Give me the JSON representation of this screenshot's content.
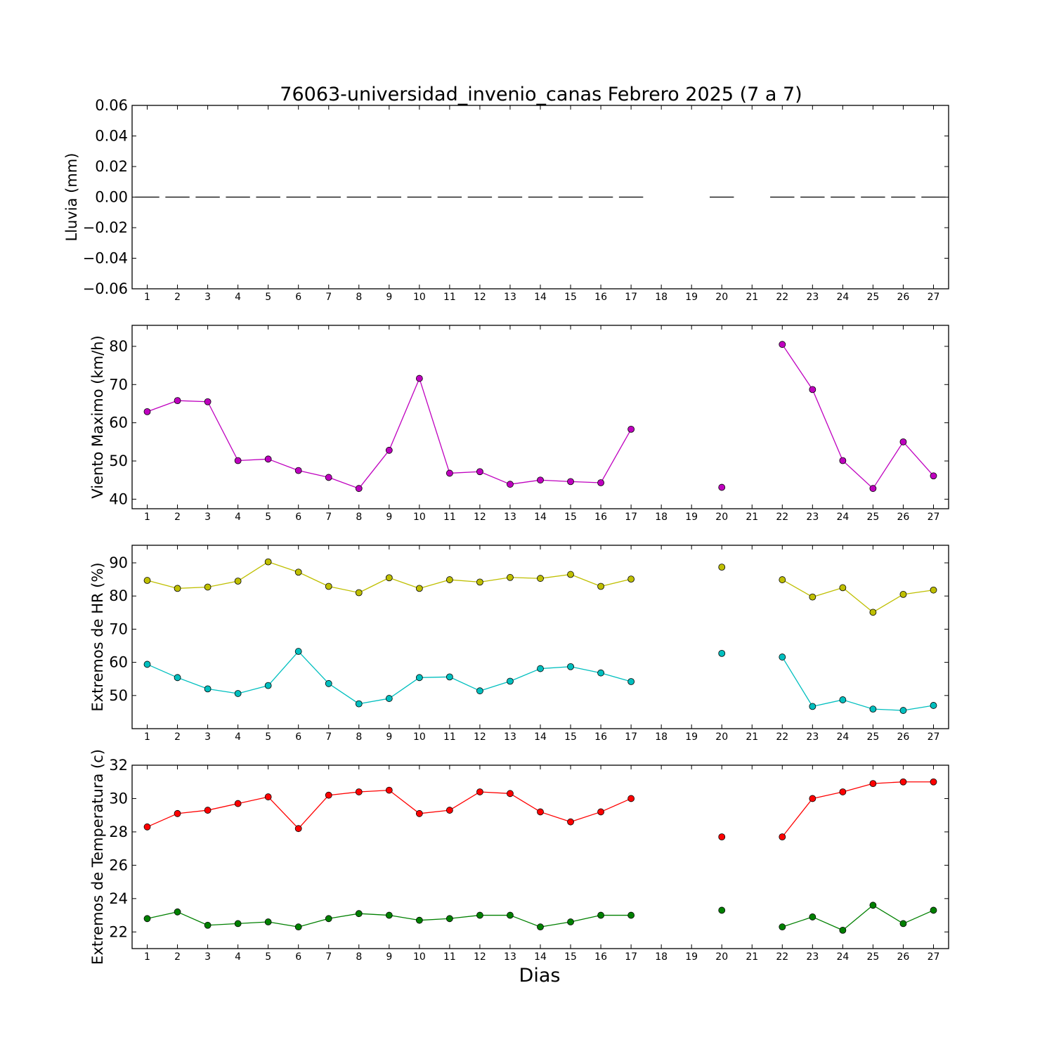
{
  "chart_data": [
    {
      "type": "bar",
      "title": "76063-universidad_invenio_canas Febrero 2025  (7 a 7)",
      "ylabel": "Lluvia (mm)",
      "xlabel": "",
      "ylim": [
        -0.06,
        0.06
      ],
      "yticks": [
        "0.06",
        "0.04",
        "0.02",
        "0.00",
        "−0.02",
        "−0.04",
        "−0.06"
      ],
      "yticks_values": [
        0.06,
        0.04,
        0.02,
        0.0,
        -0.02,
        -0.04,
        -0.06
      ],
      "categories": [
        1,
        2,
        3,
        4,
        5,
        6,
        7,
        8,
        9,
        10,
        11,
        12,
        13,
        14,
        15,
        16,
        17,
        18,
        19,
        20,
        21,
        22,
        23,
        24,
        25,
        26,
        27
      ],
      "series": [
        {
          "color": "#000000",
          "values": [
            0,
            0,
            0,
            0,
            0,
            0,
            0,
            0,
            0,
            0,
            0,
            0,
            0,
            0,
            0,
            0,
            0,
            null,
            null,
            0,
            null,
            0,
            0,
            0,
            0,
            0,
            0
          ]
        }
      ]
    },
    {
      "type": "line",
      "title": "",
      "ylabel": "Viento Maximo (km/h)",
      "xlabel": "",
      "ylim": [
        37.5,
        85.5
      ],
      "yticks": [
        "80",
        "70",
        "60",
        "50",
        "40"
      ],
      "yticks_values": [
        80,
        70,
        60,
        50,
        40
      ],
      "categories": [
        1,
        2,
        3,
        4,
        5,
        6,
        7,
        8,
        9,
        10,
        11,
        12,
        13,
        14,
        15,
        16,
        17,
        18,
        19,
        20,
        21,
        22,
        23,
        24,
        25,
        26,
        27
      ],
      "series": [
        {
          "color": "#bf00bf",
          "values": [
            62.9,
            65.8,
            65.5,
            50.1,
            50.5,
            47.5,
            45.7,
            42.8,
            52.8,
            71.6,
            46.8,
            47.2,
            43.9,
            45.0,
            44.6,
            44.3,
            58.3,
            null,
            null,
            43.1,
            null,
            80.5,
            68.7,
            50.1,
            42.8,
            55.0,
            46.1
          ]
        }
      ]
    },
    {
      "type": "line",
      "title": "",
      "ylabel": "Extremos de HR (%)",
      "xlabel": "",
      "ylim": [
        40,
        95.3
      ],
      "yticks": [
        "90",
        "80",
        "70",
        "60",
        "50"
      ],
      "yticks_values": [
        90,
        80,
        70,
        60,
        50
      ],
      "categories": [
        1,
        2,
        3,
        4,
        5,
        6,
        7,
        8,
        9,
        10,
        11,
        12,
        13,
        14,
        15,
        16,
        17,
        18,
        19,
        20,
        21,
        22,
        23,
        24,
        25,
        26,
        27
      ],
      "series": [
        {
          "color": "#bfbf00",
          "values": [
            84.7,
            82.3,
            82.7,
            84.5,
            90.3,
            87.2,
            82.9,
            81.0,
            85.5,
            82.3,
            84.9,
            84.2,
            85.6,
            85.3,
            86.5,
            82.9,
            85.1,
            null,
            null,
            88.7,
            null,
            84.9,
            79.7,
            82.5,
            75.1,
            80.5,
            81.8
          ]
        },
        {
          "color": "#00bfbf",
          "values": [
            59.4,
            55.4,
            52.0,
            50.6,
            53.0,
            63.3,
            53.6,
            47.5,
            49.1,
            55.4,
            55.6,
            51.4,
            54.3,
            58.1,
            58.7,
            56.8,
            54.2,
            null,
            null,
            62.7,
            null,
            61.6,
            46.7,
            48.7,
            45.9,
            45.5,
            47.0
          ]
        }
      ]
    },
    {
      "type": "line",
      "title": "",
      "ylabel": "Extremos de Temperatura (c)",
      "xlabel": "Dias",
      "ylim": [
        21,
        32
      ],
      "yticks": [
        "32",
        "30",
        "28",
        "26",
        "24",
        "22"
      ],
      "yticks_values": [
        32,
        30,
        28,
        26,
        24,
        22
      ],
      "categories": [
        1,
        2,
        3,
        4,
        5,
        6,
        7,
        8,
        9,
        10,
        11,
        12,
        13,
        14,
        15,
        16,
        17,
        18,
        19,
        20,
        21,
        22,
        23,
        24,
        25,
        26,
        27
      ],
      "series": [
        {
          "color": "#ff0000",
          "values": [
            28.3,
            29.1,
            29.3,
            29.7,
            30.1,
            28.2,
            30.2,
            30.4,
            30.5,
            29.1,
            29.3,
            30.4,
            30.3,
            29.2,
            28.6,
            29.2,
            30.0,
            null,
            null,
            27.7,
            null,
            27.7,
            30.0,
            30.4,
            30.9,
            31.0,
            31.0
          ]
        },
        {
          "color": "#008000",
          "values": [
            22.8,
            23.2,
            22.4,
            22.5,
            22.6,
            22.3,
            22.8,
            23.1,
            23.0,
            22.7,
            22.8,
            23.0,
            23.0,
            22.3,
            22.6,
            23.0,
            23.0,
            null,
            null,
            23.3,
            null,
            22.3,
            22.9,
            22.1,
            23.6,
            22.5,
            23.3
          ]
        }
      ]
    }
  ]
}
